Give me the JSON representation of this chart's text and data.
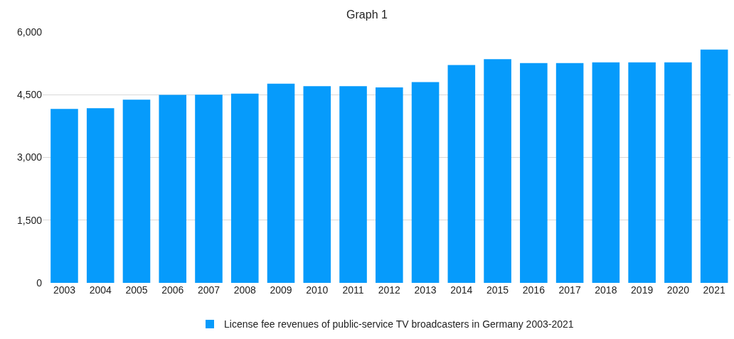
{
  "chart_data": {
    "type": "bar",
    "title": "Graph 1",
    "categories": [
      "2003",
      "2004",
      "2005",
      "2006",
      "2007",
      "2008",
      "2009",
      "2010",
      "2011",
      "2012",
      "2013",
      "2014",
      "2015",
      "2016",
      "2017",
      "2018",
      "2019",
      "2020",
      "2021"
    ],
    "series": [
      {
        "name": "License fee revenues of public-service TV broadcasters in Germany 2003-2021",
        "color": "#069bfb",
        "values": [
          4160,
          4175,
          4380,
          4495,
          4500,
          4525,
          4765,
          4705,
          4705,
          4675,
          4800,
          5210,
          5350,
          5255,
          5255,
          5275,
          5275,
          5275,
          5580
        ]
      }
    ],
    "ylim": [
      0,
      6000
    ],
    "yticks": [
      {
        "value": 0,
        "label": "0"
      },
      {
        "value": 1500,
        "label": "1,500"
      },
      {
        "value": 3000,
        "label": "3,000"
      },
      {
        "value": 4500,
        "label": "4,500"
      },
      {
        "value": 6000,
        "label": "6,000"
      }
    ],
    "grid": "y",
    "legend": "bottom"
  }
}
